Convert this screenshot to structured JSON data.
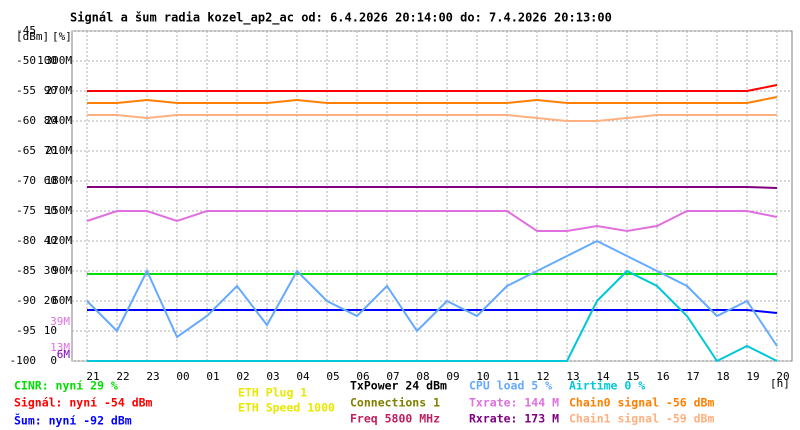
{
  "chart_data": {
    "type": "line",
    "title": "Signál a šum radia kozel_ap2_ac od: 6.4.2026 20:14:00 do: 7.4.2026 20:13:00",
    "y_label": "[dBm]",
    "y2_label": "[%]",
    "x_label": "[h]",
    "categories": [
      "21",
      "22",
      "23",
      "00",
      "01",
      "02",
      "03",
      "04",
      "05",
      "06",
      "07",
      "08",
      "09",
      "10",
      "11",
      "12",
      "13",
      "14",
      "15",
      "16",
      "17",
      "18",
      "19",
      "20"
    ],
    "ylim": [
      -100,
      -45
    ],
    "yticks": [
      -45,
      -50,
      -55,
      -60,
      -65,
      -70,
      -75,
      -80,
      -85,
      -90,
      -95,
      -100
    ],
    "y2lim": [
      0,
      110
    ],
    "y2ticks": [
      0,
      10,
      20,
      30,
      40,
      50,
      60,
      70,
      80,
      90,
      100
    ],
    "y3lim": [
      0,
      330
    ],
    "y3ticks": [
      {
        "value": 60,
        "label": "60M"
      },
      {
        "value": 90,
        "label": "90M"
      },
      {
        "value": 120,
        "label": "120M"
      },
      {
        "value": 150,
        "label": "150M"
      },
      {
        "value": 180,
        "label": "180M"
      },
      {
        "value": 210,
        "label": "210M"
      },
      {
        "value": 240,
        "label": "240M"
      },
      {
        "value": 270,
        "label": "270M"
      },
      {
        "value": 300,
        "label": "300M"
      }
    ],
    "y3_markers": [
      {
        "value": 39,
        "label": "39M",
        "color": "#e070e0"
      },
      {
        "value": 13,
        "label": "13M",
        "color": "#e070e0"
      },
      {
        "value": 6,
        "label": "6M",
        "color": "#8000c0"
      }
    ],
    "grid": true,
    "series": [
      {
        "name": "Signál: nyní -54 dBm",
        "color": "#ff0000",
        "axis": "y",
        "values": [
          -55,
          -55,
          -55,
          -55,
          -55,
          -55,
          -55,
          -55,
          -55,
          -55,
          -55,
          -55,
          -55,
          -55,
          -55,
          -55,
          -55,
          -55,
          -55,
          -55,
          -55,
          -55,
          -55,
          -54
        ]
      },
      {
        "name": "Chain0 signal -56 dBm",
        "color": "#ff8000",
        "axis": "y",
        "values": [
          -57,
          -57,
          -56.5,
          -57,
          -57,
          -57,
          -57,
          -56.5,
          -57,
          -57,
          -57,
          -57,
          -57,
          -57,
          -57,
          -56.5,
          -57,
          -57,
          -57,
          -57,
          -57,
          -57,
          -57,
          -56
        ]
      },
      {
        "name": "Chain1 signal -59 dBm",
        "color": "#ffb080",
        "axis": "y",
        "values": [
          -59,
          -59,
          -59.5,
          -59,
          -59,
          -59,
          -59,
          -59,
          -59,
          -59,
          -59,
          -59,
          -59,
          -59,
          -59,
          -59.5,
          -60,
          -60,
          -59.5,
          -59,
          -59,
          -59,
          -59,
          -59
        ]
      },
      {
        "name": "Šum: nyní -92 dBm",
        "color": "#0000ff",
        "axis": "y",
        "values": [
          -91.5,
          -91.5,
          -91.5,
          -91.5,
          -91.5,
          -91.5,
          -91.5,
          -91.5,
          -91.5,
          -91.5,
          -91.5,
          -91.5,
          -91.5,
          -91.5,
          -91.5,
          -91.5,
          -91.5,
          -91.5,
          -91.5,
          -91.5,
          -91.5,
          -91.5,
          -91.5,
          -92
        ]
      },
      {
        "name": "CINR: nyní 29 %",
        "color": "#00e000",
        "axis": "y2",
        "values": [
          29,
          29,
          29,
          29,
          29,
          29,
          29,
          29,
          29,
          29,
          29,
          29,
          29,
          29,
          29,
          29,
          29,
          29,
          29,
          29,
          29,
          29,
          29,
          29
        ]
      },
      {
        "name": "Txrate: 144 M",
        "color": "#e070e0",
        "axis": "y3",
        "values": [
          140,
          150,
          150,
          140,
          150,
          150,
          150,
          150,
          150,
          150,
          150,
          150,
          150,
          150,
          150,
          130,
          130,
          135,
          130,
          135,
          150,
          150,
          150,
          144
        ]
      },
      {
        "name": "Rxrate: 173 M",
        "color": "#800080",
        "axis": "y3",
        "values": [
          174,
          174,
          174,
          174,
          174,
          174,
          174,
          174,
          174,
          174,
          174,
          174,
          174,
          174,
          174,
          174,
          174,
          174,
          174,
          174,
          174,
          174,
          174,
          173
        ]
      },
      {
        "name": "CPU load 5 %",
        "color": "#66aaff",
        "axis": "y2",
        "values": [
          20,
          10,
          30,
          8,
          15,
          25,
          12,
          30,
          20,
          15,
          25,
          10,
          20,
          15,
          25,
          30,
          35,
          40,
          35,
          30,
          25,
          15,
          20,
          5
        ]
      },
      {
        "name": "Airtime 0 %",
        "color": "#00c8d8",
        "axis": "y2",
        "values": [
          0,
          0,
          0,
          0,
          0,
          0,
          0,
          0,
          0,
          0,
          0,
          0,
          0,
          0,
          0,
          0,
          0,
          20,
          30,
          25,
          15,
          0,
          5,
          0
        ]
      }
    ],
    "info": [
      {
        "text": "ETH Plug 1",
        "color": "#e8e800"
      },
      {
        "text": "ETH Speed 1000",
        "color": "#e8e800"
      },
      {
        "text": "TxPower 24 dBm",
        "color": "#000000"
      },
      {
        "text": "Connections 1",
        "color": "#808000"
      },
      {
        "text": "Freq 5800 MHz",
        "color": "#c02060"
      }
    ]
  }
}
